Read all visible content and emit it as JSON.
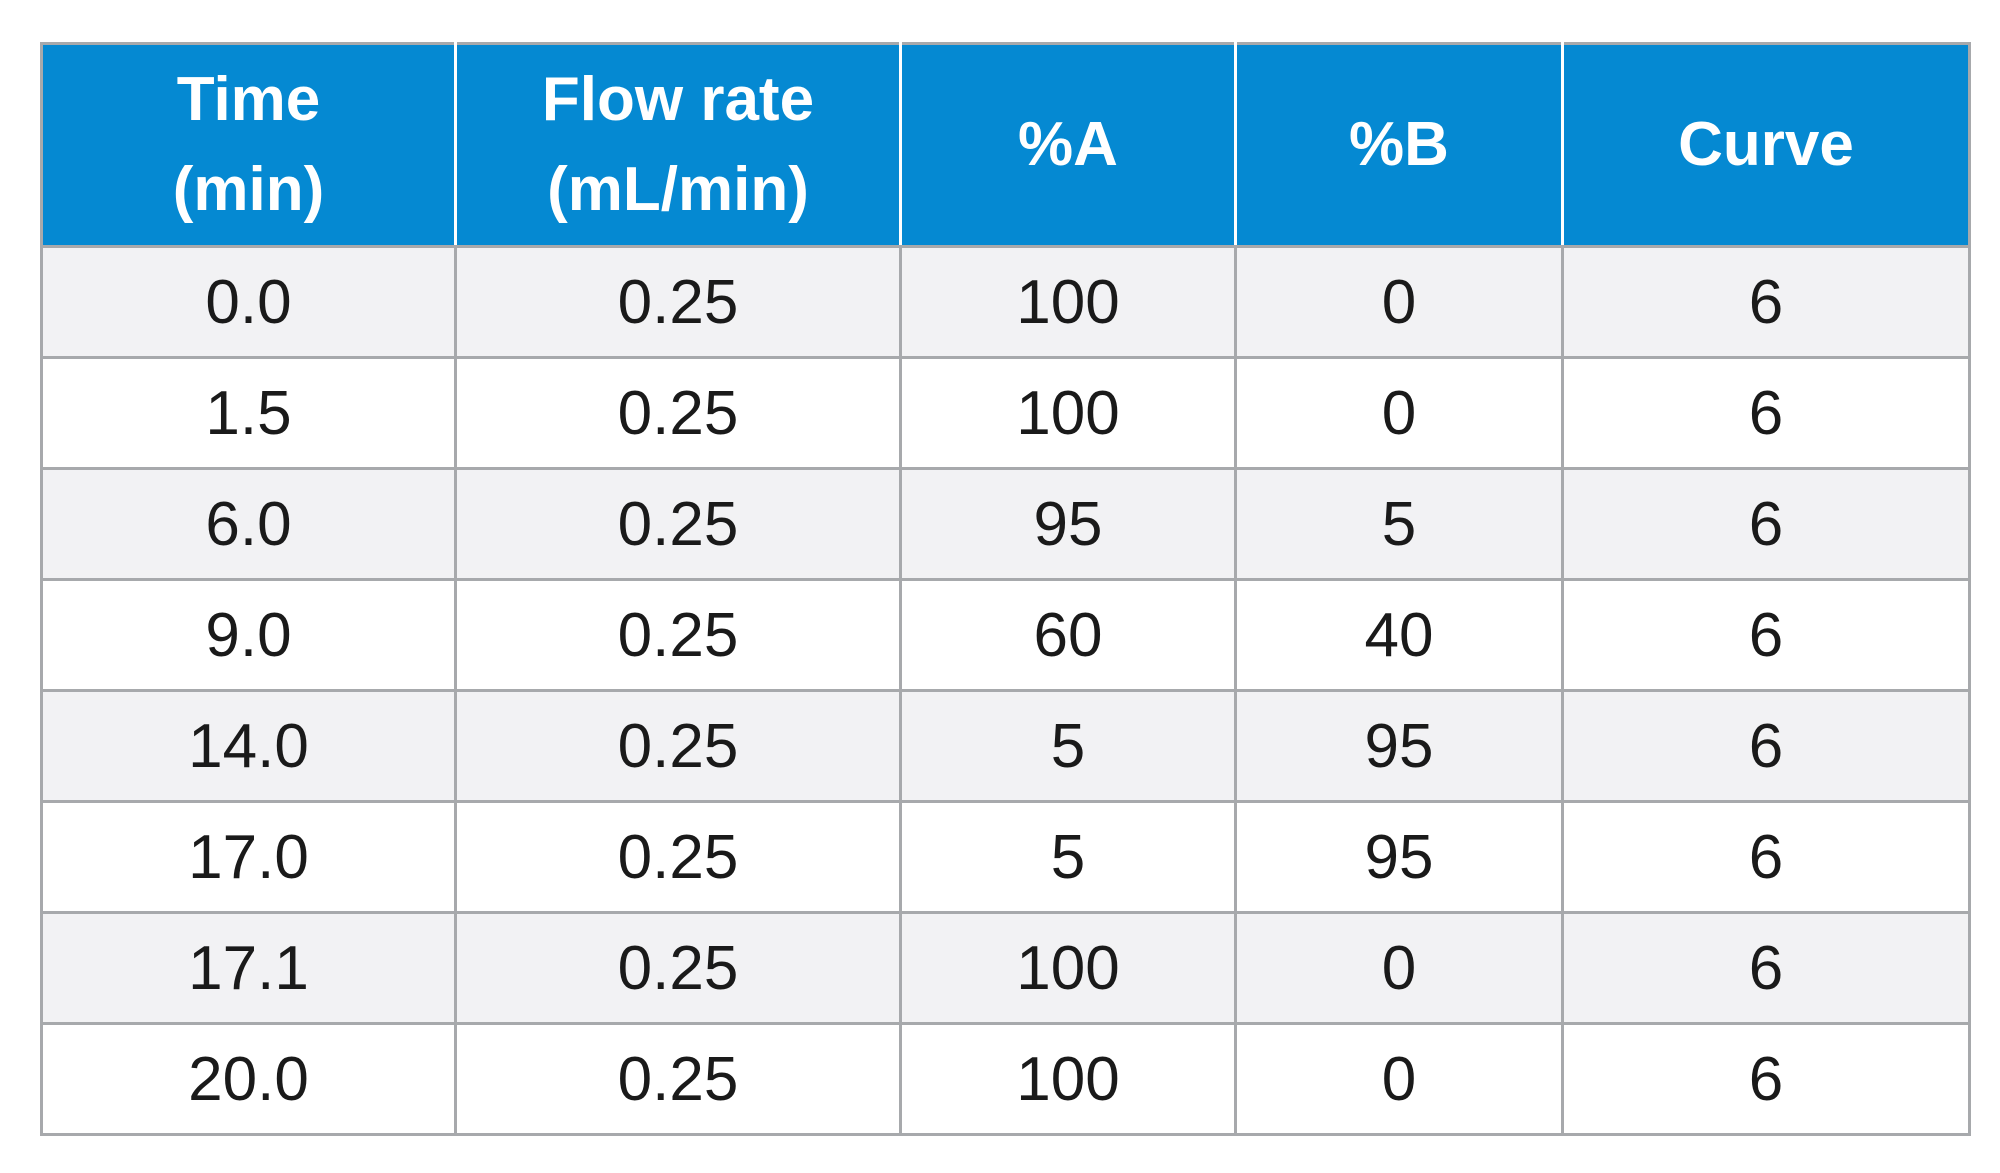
{
  "table": {
    "headers": [
      {
        "line1": "Time",
        "line2": "(min)"
      },
      {
        "line1": "Flow rate",
        "line2": "(mL/min)"
      },
      {
        "line1": "%A",
        "line2": ""
      },
      {
        "line1": "%B",
        "line2": ""
      },
      {
        "line1": "Curve",
        "line2": ""
      }
    ],
    "rows": [
      [
        "0.0",
        "0.25",
        "100",
        "0",
        "6"
      ],
      [
        "1.5",
        "0.25",
        "100",
        "0",
        "6"
      ],
      [
        "6.0",
        "0.25",
        "95",
        "5",
        "6"
      ],
      [
        "9.0",
        "0.25",
        "60",
        "40",
        "6"
      ],
      [
        "14.0",
        "0.25",
        "5",
        "95",
        "6"
      ],
      [
        "17.0",
        "0.25",
        "5",
        "95",
        "6"
      ],
      [
        "17.1",
        "0.25",
        "100",
        "0",
        "6"
      ],
      [
        "20.0",
        "0.25",
        "100",
        "0",
        "6"
      ]
    ]
  },
  "colors": {
    "header_bg": "#0589d2",
    "header_text": "#ffffff",
    "row_alt_bg": "#f2f2f4",
    "border": "#a7a9ac"
  }
}
